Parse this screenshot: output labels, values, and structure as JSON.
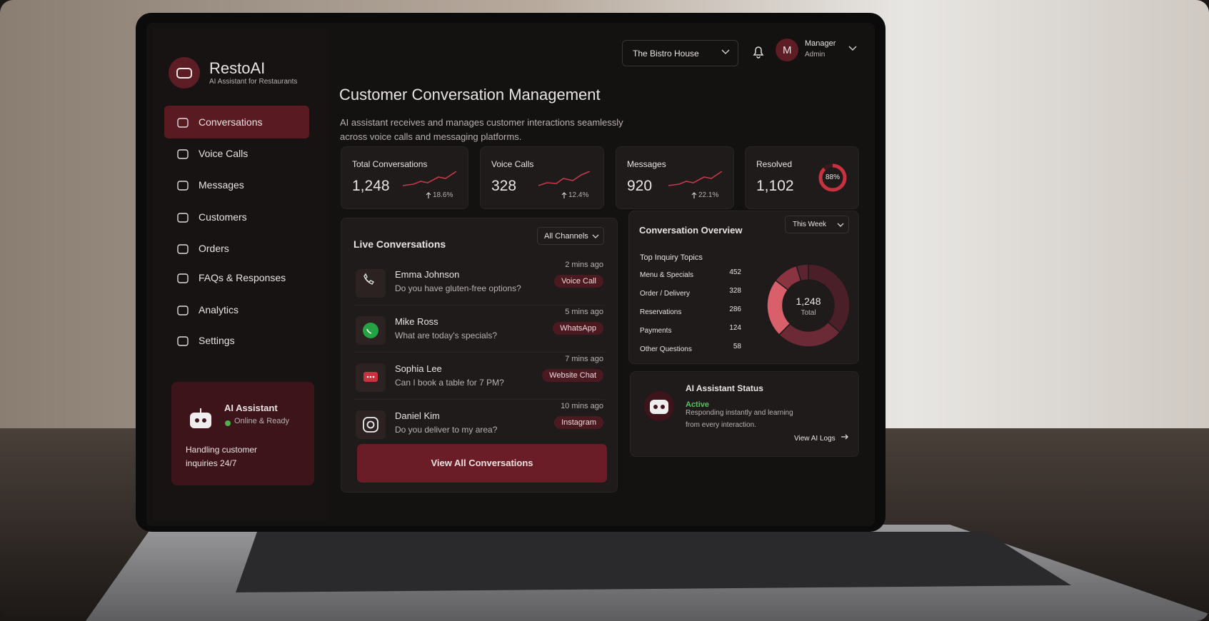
{
  "brand": {
    "name": "RestoAI",
    "tagline": "AI Assistant for Restaurants"
  },
  "topbar": {
    "location": "The Bistro House",
    "user": {
      "initial": "M",
      "name": "Manager",
      "role": "Admin"
    }
  },
  "nav": [
    "Conversations",
    "Voice Calls",
    "Messages",
    "Customers",
    "Orders",
    "FAQs & Responses",
    "Analytics",
    "Settings"
  ],
  "assistant_card": {
    "title": "AI Assistant",
    "status": "Online & Ready",
    "description": "Handling customer inquiries 24/7"
  },
  "header": {
    "title": "Customer Conversation Management",
    "subtitle": "AI assistant receives and manages customer interactions seamlessly across voice calls and messaging platforms."
  },
  "stats": [
    {
      "label": "Total Conversations",
      "value": "1,248",
      "change": "18.6%"
    },
    {
      "label": "Voice Calls",
      "value": "328",
      "change": "12.4%"
    },
    {
      "label": "Messages",
      "value": "920",
      "change": "22.1%"
    },
    {
      "label": "Resolved",
      "value": "1,102",
      "percent": {
        "value": 88,
        "label": "88%"
      }
    }
  ],
  "live": {
    "title": "Live Conversations",
    "filter": "All Channels",
    "items": [
      {
        "name": "Emma Johnson",
        "message": "Do you have gluten-free options?",
        "time": "2 mins ago",
        "channel": "Voice Call"
      },
      {
        "name": "Mike Ross",
        "message": "What are today's specials?",
        "time": "5 mins ago",
        "channel": "WhatsApp"
      },
      {
        "name": "Sophia Lee",
        "message": "Can I book a table for 7 PM?",
        "time": "7 mins ago",
        "channel": "Website Chat"
      },
      {
        "name": "Daniel Kim",
        "message": "Do you deliver to my area?",
        "time": "10 mins ago",
        "channel": "Instagram"
      }
    ],
    "button": "View All Conversations"
  },
  "overview": {
    "title": "Conversation Overview",
    "period": "This Week",
    "topics_title": "Top Inquiry Topics",
    "topics": [
      {
        "label": "Menu & Specials",
        "count": 452,
        "color": "#4a1f27"
      },
      {
        "label": "Order / Delivery",
        "count": 328,
        "color": "#6b2a35"
      },
      {
        "label": "Reservations",
        "count": 286,
        "color": "#d95f6a"
      },
      {
        "label": "Payments",
        "count": 124,
        "color": "#8a3441"
      },
      {
        "label": "Other Questions",
        "count": 58,
        "color": "#5a2530"
      }
    ],
    "total": "1,248",
    "total_label": "Total"
  },
  "status": {
    "title": "AI Assistant Status",
    "state": "Active",
    "description": "Responding instantly and learning from every interaction.",
    "link": "View AI Logs"
  }
}
